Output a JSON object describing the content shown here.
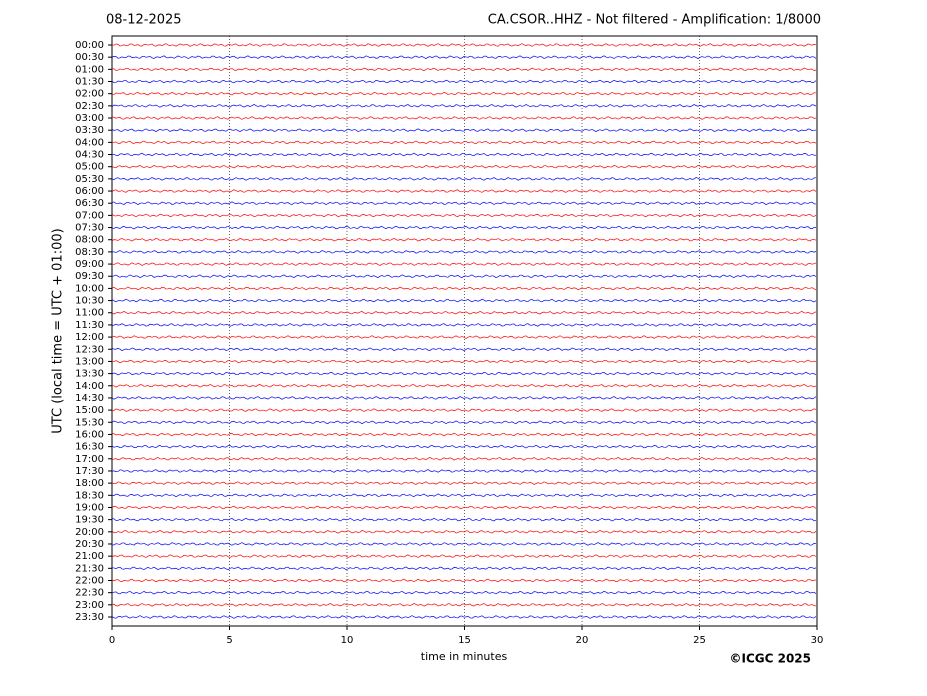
{
  "chart_data": {
    "type": "helicorder",
    "date": "08-12-2025",
    "title": "CA.CSOR..HHZ - Not filtered - Amplification: 1/8000",
    "ylabel": "UTC (local time = UTC + 01:00)",
    "xlabel": "time in minutes",
    "credit": "©ICGC 2025",
    "categories": [
      "00:00",
      "00:30",
      "01:00",
      "01:30",
      "02:00",
      "02:30",
      "03:00",
      "03:30",
      "04:00",
      "04:30",
      "05:00",
      "05:30",
      "06:00",
      "06:30",
      "07:00",
      "07:30",
      "08:00",
      "08:30",
      "09:00",
      "09:30",
      "10:00",
      "10:30",
      "11:00",
      "11:30",
      "12:00",
      "12:30",
      "13:00",
      "13:30",
      "14:00",
      "14:30",
      "15:00",
      "15:30",
      "16:00",
      "16:30",
      "17:00",
      "17:30",
      "18:00",
      "18:30",
      "19:00",
      "19:30",
      "20:00",
      "20:30",
      "21:00",
      "21:30",
      "22:00",
      "22:30",
      "23:00",
      "23:30"
    ],
    "colors": [
      "#ff0000",
      "#0000ff"
    ],
    "xlim": [
      0,
      30
    ],
    "xticks": [
      0,
      5,
      10,
      15,
      20,
      25,
      30
    ],
    "grid": true
  }
}
